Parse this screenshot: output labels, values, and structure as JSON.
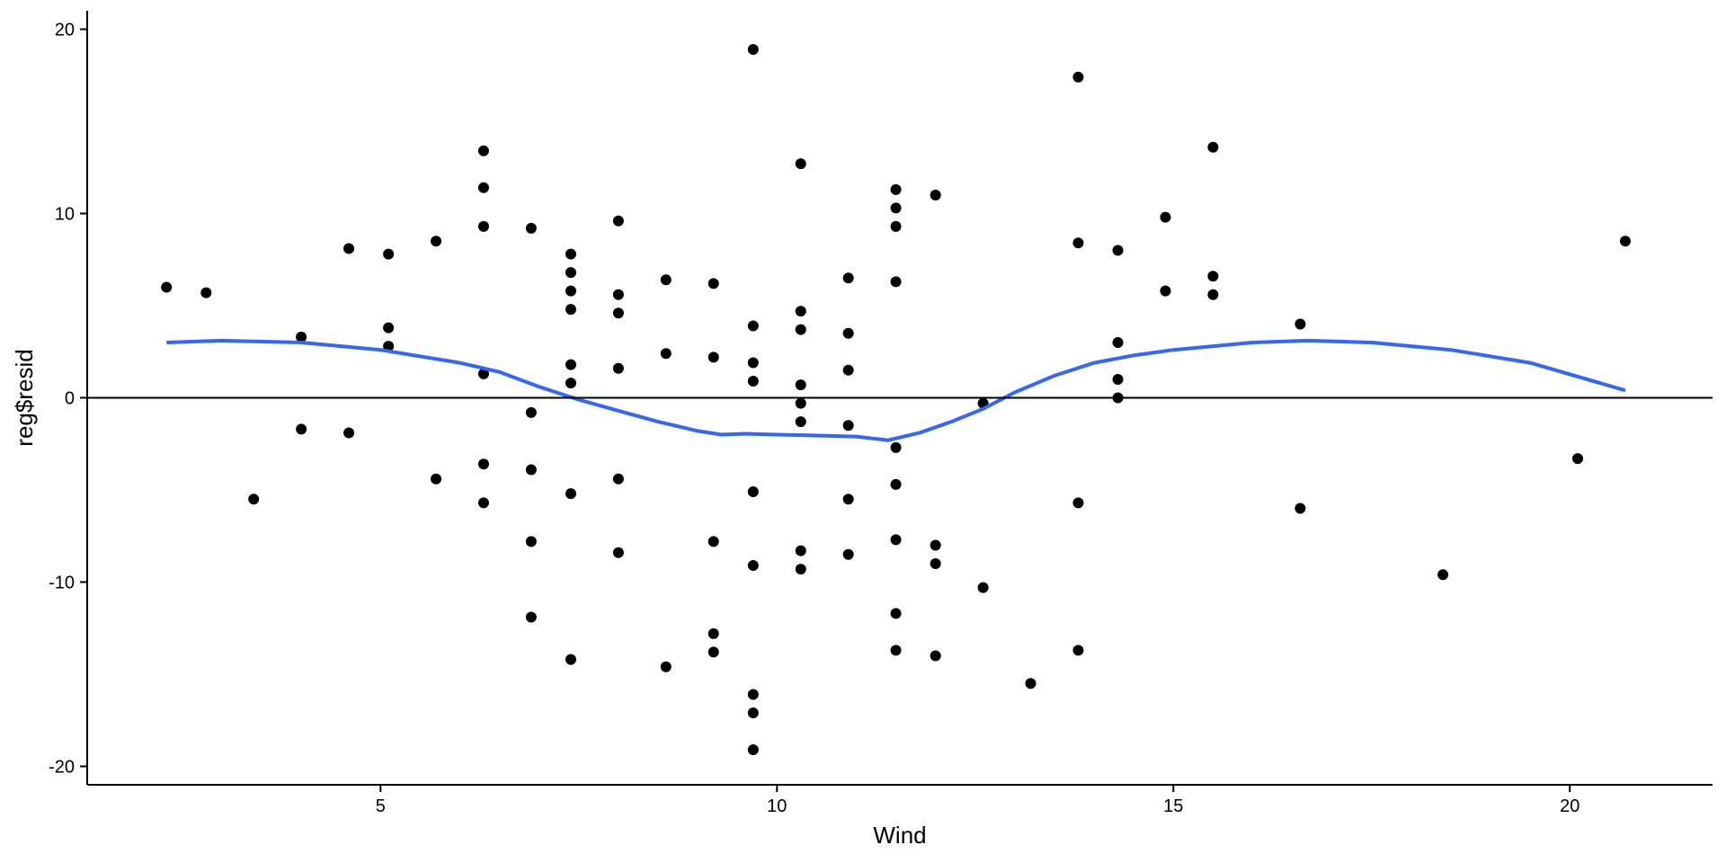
{
  "chart_data": {
    "type": "scatter",
    "title": "",
    "xlabel": "Wind",
    "ylabel": "reg$resid",
    "xlim": [
      1.3,
      21.8
    ],
    "ylim": [
      -21,
      21
    ],
    "x_ticks": [
      5,
      10,
      15,
      20
    ],
    "y_ticks": [
      -20,
      -10,
      0,
      10,
      20
    ],
    "grid": false,
    "legend": "none",
    "reference_line": {
      "y": 0,
      "color": "#000000"
    },
    "point_color": "#000000",
    "smooth_color": "#3366FF",
    "points": [
      [
        2.3,
        6.0
      ],
      [
        2.8,
        5.7
      ],
      [
        3.4,
        -5.5
      ],
      [
        4.0,
        3.3
      ],
      [
        4.0,
        -1.7
      ],
      [
        4.6,
        8.1
      ],
      [
        4.6,
        -1.9
      ],
      [
        5.1,
        7.8
      ],
      [
        5.1,
        3.8
      ],
      [
        5.1,
        2.8
      ],
      [
        5.7,
        8.5
      ],
      [
        5.7,
        -4.4
      ],
      [
        6.3,
        13.4
      ],
      [
        6.3,
        11.4
      ],
      [
        6.3,
        9.3
      ],
      [
        6.3,
        1.3
      ],
      [
        6.3,
        -3.6
      ],
      [
        6.3,
        -5.7
      ],
      [
        6.9,
        9.2
      ],
      [
        6.9,
        -0.8
      ],
      [
        6.9,
        -3.9
      ],
      [
        6.9,
        -7.8
      ],
      [
        6.9,
        -11.9
      ],
      [
        7.4,
        7.8
      ],
      [
        7.4,
        6.8
      ],
      [
        7.4,
        5.8
      ],
      [
        7.4,
        4.8
      ],
      [
        7.4,
        1.8
      ],
      [
        7.4,
        0.8
      ],
      [
        7.4,
        -5.2
      ],
      [
        7.4,
        -14.2
      ],
      [
        8.0,
        9.6
      ],
      [
        8.0,
        5.6
      ],
      [
        8.0,
        4.6
      ],
      [
        8.0,
        1.6
      ],
      [
        8.0,
        -4.4
      ],
      [
        8.0,
        -8.4
      ],
      [
        8.6,
        6.4
      ],
      [
        8.6,
        2.4
      ],
      [
        8.6,
        -14.6
      ],
      [
        9.2,
        6.2
      ],
      [
        9.2,
        2.2
      ],
      [
        9.2,
        -7.8
      ],
      [
        9.2,
        -12.8
      ],
      [
        9.2,
        -13.8
      ],
      [
        9.7,
        18.9
      ],
      [
        9.7,
        3.9
      ],
      [
        9.7,
        1.9
      ],
      [
        9.7,
        0.9
      ],
      [
        9.7,
        -5.1
      ],
      [
        9.7,
        -9.1
      ],
      [
        9.7,
        -16.1
      ],
      [
        9.7,
        -17.1
      ],
      [
        9.7,
        -19.1
      ],
      [
        10.3,
        12.7
      ],
      [
        10.3,
        4.7
      ],
      [
        10.3,
        3.7
      ],
      [
        10.3,
        0.7
      ],
      [
        10.3,
        -0.3
      ],
      [
        10.3,
        -1.3
      ],
      [
        10.3,
        -8.3
      ],
      [
        10.3,
        -9.3
      ],
      [
        10.9,
        6.5
      ],
      [
        10.9,
        3.5
      ],
      [
        10.9,
        1.5
      ],
      [
        10.9,
        -1.5
      ],
      [
        10.9,
        -5.5
      ],
      [
        10.9,
        -8.5
      ],
      [
        11.5,
        11.3
      ],
      [
        11.5,
        10.3
      ],
      [
        11.5,
        9.3
      ],
      [
        11.5,
        6.3
      ],
      [
        11.5,
        -2.7
      ],
      [
        11.5,
        -4.7
      ],
      [
        11.5,
        -7.7
      ],
      [
        11.5,
        -11.7
      ],
      [
        11.5,
        -13.7
      ],
      [
        12.0,
        11.0
      ],
      [
        12.0,
        -8.0
      ],
      [
        12.0,
        -9.0
      ],
      [
        12.0,
        -14.0
      ],
      [
        12.6,
        -0.3
      ],
      [
        12.6,
        -10.3
      ],
      [
        13.2,
        -15.5
      ],
      [
        13.8,
        17.4
      ],
      [
        13.8,
        8.4
      ],
      [
        13.8,
        -5.7
      ],
      [
        13.8,
        -13.7
      ],
      [
        14.3,
        8.0
      ],
      [
        14.3,
        3.0
      ],
      [
        14.3,
        1.0
      ],
      [
        14.3,
        0.0
      ],
      [
        14.9,
        9.8
      ],
      [
        14.9,
        5.8
      ],
      [
        15.5,
        13.6
      ],
      [
        15.5,
        6.6
      ],
      [
        15.5,
        5.6
      ],
      [
        16.6,
        4.0
      ],
      [
        16.6,
        -6.0
      ],
      [
        18.4,
        -9.6
      ],
      [
        20.1,
        -3.3
      ],
      [
        20.7,
        8.5
      ]
    ],
    "smooth": [
      [
        2.3,
        3.0
      ],
      [
        3.0,
        3.1
      ],
      [
        4.0,
        3.0
      ],
      [
        5.0,
        2.6
      ],
      [
        6.0,
        1.9
      ],
      [
        6.5,
        1.4
      ],
      [
        7.0,
        0.6
      ],
      [
        7.5,
        -0.1
      ],
      [
        8.0,
        -0.7
      ],
      [
        8.5,
        -1.3
      ],
      [
        9.0,
        -1.8
      ],
      [
        9.3,
        -2.0
      ],
      [
        9.6,
        -1.95
      ],
      [
        10.0,
        -2.0
      ],
      [
        10.5,
        -2.05
      ],
      [
        11.0,
        -2.1
      ],
      [
        11.4,
        -2.3
      ],
      [
        11.8,
        -1.9
      ],
      [
        12.2,
        -1.3
      ],
      [
        12.6,
        -0.6
      ],
      [
        13.0,
        0.3
      ],
      [
        13.5,
        1.2
      ],
      [
        14.0,
        1.9
      ],
      [
        14.5,
        2.3
      ],
      [
        15.0,
        2.6
      ],
      [
        15.5,
        2.8
      ],
      [
        16.0,
        3.0
      ],
      [
        16.7,
        3.1
      ],
      [
        17.5,
        3.0
      ],
      [
        18.5,
        2.6
      ],
      [
        19.5,
        1.9
      ],
      [
        20.7,
        0.4
      ]
    ]
  }
}
